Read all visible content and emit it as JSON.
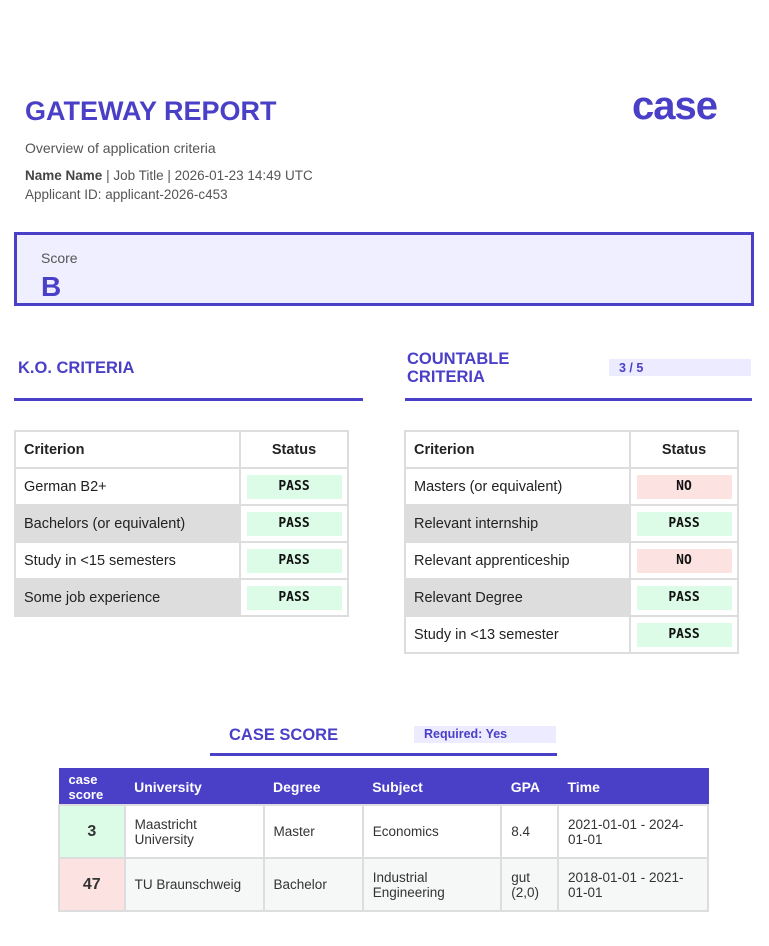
{
  "header": {
    "title": "GATEWAY REPORT",
    "subtitle": "Overview of application criteria",
    "name": "Name Name",
    "meta": "| Job Title | 2026-01-23 14:49 UTC",
    "applicant_id": "Applicant ID: applicant-2026-c453",
    "logo": "case"
  },
  "score": {
    "label": "Score",
    "value": "B"
  },
  "ko_criteria": {
    "title": "K.O. CRITERIA",
    "columns": [
      "Criterion",
      "Status"
    ],
    "rows": [
      [
        "German B2+",
        "PASS"
      ],
      [
        "Bachelors (or equivalent)",
        "PASS"
      ],
      [
        "Study in <15 semesters",
        "PASS"
      ],
      [
        "Some job experience",
        "PASS"
      ]
    ]
  },
  "countable_criteria": {
    "title": "COUNTABLE CRITERIA",
    "count": "3 / 5",
    "columns": [
      "Criterion",
      "Status"
    ],
    "rows": [
      [
        "Masters (or equivalent)",
        "NO"
      ],
      [
        "Relevant internship",
        "PASS"
      ],
      [
        "Relevant apprenticeship",
        "NO"
      ],
      [
        "Relevant Degree",
        "PASS"
      ],
      [
        "Study in <13 semester",
        "PASS"
      ]
    ]
  },
  "case_score": {
    "title": "CASE SCORE",
    "required": "Required: Yes",
    "columns": [
      "case score",
      "University",
      "Degree",
      "Subject",
      "GPA",
      "Time"
    ],
    "rows": [
      [
        3,
        "Maastricht University",
        "Master",
        "Economics",
        8.4,
        "2021-01-01 - 2024-01-01"
      ],
      [
        47,
        "TU Braunschweig",
        "Bachelor",
        "Industrial Engineering",
        "gut (2,0)",
        "2018-01-01 - 2021-01-01"
      ]
    ]
  }
}
